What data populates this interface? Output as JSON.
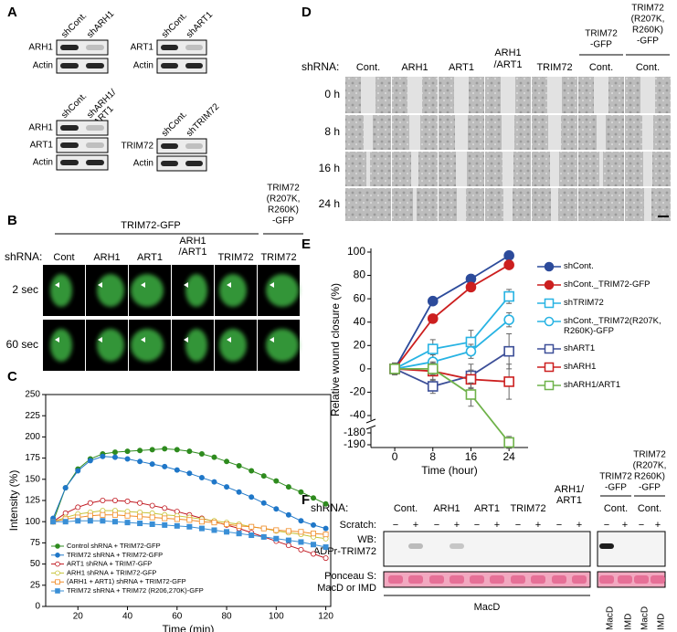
{
  "panel_labels": [
    "A",
    "B",
    "C",
    "D",
    "E",
    "F"
  ],
  "panel_a": {
    "blots": [
      {
        "lanes": [
          "shCont.",
          "shARH1"
        ],
        "rows": [
          "ARH1",
          "Actin"
        ]
      },
      {
        "lanes": [
          "shCont.",
          "shART1"
        ],
        "rows": [
          "ART1",
          "Actin"
        ]
      },
      {
        "lanes": [
          "shCont.",
          [
            "shARH1/",
            "ART1"
          ]
        ],
        "rows": [
          "ARH1",
          "ART1",
          "Actin"
        ]
      },
      {
        "lanes": [
          "shCont.",
          "shTRIM72"
        ],
        "rows": [
          "TRIM72",
          "Actin"
        ]
      }
    ]
  },
  "panel_b": {
    "group_header": "TRIM72-GFP",
    "mut_header": [
      "TRIM72",
      "(R207K,",
      "R260K)",
      "-GFP"
    ],
    "shrna_label": "shRNA:",
    "columns": [
      "Cont",
      "ARH1",
      "ART1",
      [
        "ARH1",
        "/ART1"
      ],
      "TRIM72",
      "TRIM72"
    ],
    "rows": [
      "2 sec",
      "60 sec"
    ]
  },
  "panel_d": {
    "shrna_label": "shRNA:",
    "columns": [
      "Cont.",
      "ARH1",
      "ART1",
      [
        "ARH1",
        "/ART1"
      ],
      "TRIM72",
      "Cont.",
      "Cont."
    ],
    "gfp_header": [
      "TRIM72",
      "-GFP"
    ],
    "mut_header": [
      "TRIM72",
      "(R207K,",
      "R260K)",
      "-GFP"
    ],
    "rows": [
      "0 h",
      "8 h",
      "16 h",
      "24 h"
    ]
  },
  "panel_f": {
    "shrna_label": "shRNA:",
    "lanes_left": [
      "Cont.",
      "ARH1",
      "ART1",
      "TRIM72",
      [
        "ARH1/",
        "ART1"
      ]
    ],
    "right_groups": [
      {
        "header": [
          "TRIM72",
          "-GFP"
        ],
        "lane": "Cont."
      },
      {
        "header": [
          "TRIM72",
          "(R207K,",
          "R260K)",
          "-GFP"
        ],
        "lane": "Cont."
      }
    ],
    "scratch_label": "Scratch:",
    "scratch": [
      "−",
      "+"
    ],
    "wb": [
      "WB:",
      "ADPr-TRIM72"
    ],
    "ponceau": [
      "Ponceau S:",
      "MacD or IMD"
    ],
    "bottom_left": "MacD",
    "bottom_right": [
      "MacD",
      "IMD",
      "MacD",
      "IMD"
    ]
  },
  "chart_data": [
    {
      "type": "line",
      "xlabel": "Time (min)",
      "ylabel": "Intensity (%)",
      "x": [
        10,
        15,
        20,
        25,
        30,
        35,
        40,
        45,
        50,
        55,
        60,
        65,
        70,
        75,
        80,
        85,
        90,
        95,
        100,
        105,
        110,
        115,
        120
      ],
      "xlim": [
        7,
        122
      ],
      "xticks": [
        20,
        40,
        60,
        80,
        100,
        120
      ],
      "ylim": [
        0,
        250
      ],
      "yticks": [
        0,
        25,
        50,
        75,
        100,
        125,
        150,
        175,
        200,
        225,
        250
      ],
      "series": [
        {
          "name": "Control shRNA + TRIM72-GFP",
          "color": "#2e8b1e",
          "marker": "circle",
          "filled": true,
          "values": [
            100,
            140,
            162,
            174,
            180,
            182,
            183,
            184,
            185,
            186,
            185,
            183,
            180,
            176,
            171,
            166,
            160,
            154,
            148,
            141,
            135,
            128,
            121
          ]
        },
        {
          "name": "TRIM72 shRNA + TRIM72-GFP",
          "color": "#1f77c8",
          "marker": "circle",
          "filled": true,
          "values": [
            104,
            140,
            160,
            172,
            177,
            176,
            174,
            171,
            168,
            165,
            161,
            157,
            152,
            147,
            141,
            135,
            129,
            122,
            115,
            108,
            101,
            96,
            92
          ]
        },
        {
          "name": "ART1 shRNA + TRIM7-GFP",
          "color": "#c0171f",
          "marker": "circle",
          "filled": false,
          "values": [
            100,
            110,
            117,
            122,
            125,
            125,
            124,
            122,
            119,
            116,
            112,
            108,
            104,
            100,
            96,
            92,
            87,
            82,
            77,
            72,
            67,
            62,
            57
          ]
        },
        {
          "name": "ARH1 shRNA + TRIM72-GFP",
          "color": "#c7c43a",
          "marker": "circle",
          "filled": false,
          "values": [
            100,
            105,
            109,
            111,
            113,
            113,
            112,
            111,
            110,
            108,
            107,
            105,
            103,
            101,
            99,
            97,
            94,
            92,
            89,
            87,
            85,
            82,
            80
          ]
        },
        {
          "name": "(ARH1 + ART1) shRNA + TRIM72-GFP",
          "color": "#f08a24",
          "marker": "square",
          "filled": false,
          "values": [
            100,
            103,
            105,
            107,
            108,
            108,
            107,
            106,
            105,
            104,
            103,
            102,
            100,
            99,
            97,
            95,
            94,
            92,
            90,
            89,
            88,
            86,
            85
          ]
        },
        {
          "name": "TRIM72 shRNA + TRIM72 (R206,270K)-GFP",
          "color": "#3a8fd6",
          "marker": "square",
          "filled": true,
          "values": [
            100,
            100,
            101,
            101,
            101,
            100,
            99,
            98,
            97,
            96,
            95,
            94,
            92,
            90,
            88,
            86,
            84,
            82,
            80,
            78,
            76,
            73,
            70
          ]
        }
      ]
    },
    {
      "type": "line",
      "xlabel": "Time (hour)",
      "ylabel": "Relative wound closure (%)",
      "x": [
        0,
        8,
        16,
        24
      ],
      "xlim": [
        -5,
        28
      ],
      "xticks": [
        0,
        8,
        16,
        24
      ],
      "ylim": [
        -190,
        100
      ],
      "y_break": [
        -180,
        -40
      ],
      "yticks": [
        100,
        80,
        60,
        40,
        20,
        0,
        -20,
        -40,
        -180,
        -190
      ],
      "series": [
        {
          "name": "shCont.",
          "color": "#2c4b9b",
          "marker": "circle",
          "filled": true,
          "values": [
            0,
            58,
            77,
            97
          ],
          "errors": [
            3,
            3,
            3,
            3
          ]
        },
        {
          "name": "shCont._TRIM72-GFP",
          "color": "#cc1f1f",
          "marker": "circle",
          "filled": true,
          "values": [
            0,
            43,
            70,
            89
          ],
          "errors": [
            3,
            3,
            3,
            3
          ]
        },
        {
          "name": "shTRIM72",
          "color": "#27b3e3",
          "marker": "square",
          "filled": false,
          "values": [
            0,
            17,
            23,
            62
          ],
          "errors": [
            5,
            8,
            10,
            6
          ]
        },
        {
          "name": "shCont._TRIM72(R207K, R260K)-GFP",
          "color": "#27b3e3",
          "marker": "circle",
          "filled": false,
          "values": [
            0,
            6,
            15,
            42
          ],
          "errors": [
            5,
            6,
            6,
            6
          ]
        },
        {
          "name": "shART1",
          "color": "#3d4f98",
          "marker": "square",
          "filled": false,
          "values": [
            0,
            -15,
            -6,
            15
          ],
          "errors": [
            5,
            6,
            10,
            15
          ]
        },
        {
          "name": "shARH1",
          "color": "#cc1f1f",
          "marker": "square",
          "filled": false,
          "values": [
            0,
            -2,
            -9,
            -11
          ],
          "errors": [
            5,
            8,
            8,
            15
          ]
        },
        {
          "name": "shARH1/ART1",
          "color": "#6fb24a",
          "marker": "square",
          "filled": false,
          "values": [
            0,
            0,
            -22,
            -188
          ],
          "errors": [
            5,
            5,
            10,
            5
          ]
        }
      ]
    }
  ]
}
